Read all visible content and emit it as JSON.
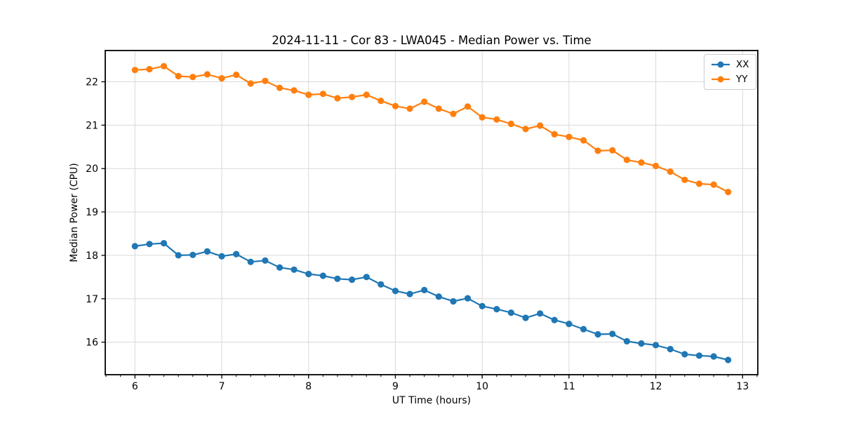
{
  "chart_data": {
    "type": "line",
    "title": "2024-11-11 - Cor 83 - LWA045 - Median Power vs. Time",
    "xlabel": "UT Time (hours)",
    "ylabel": "Median Power (CPU)",
    "x": [
      6.0,
      6.167,
      6.333,
      6.5,
      6.667,
      6.833,
      7.0,
      7.167,
      7.333,
      7.5,
      7.667,
      7.833,
      8.0,
      8.167,
      8.333,
      8.5,
      8.667,
      8.833,
      9.0,
      9.167,
      9.333,
      9.5,
      9.667,
      9.833,
      10.0,
      10.167,
      10.333,
      10.5,
      10.667,
      10.833,
      11.0,
      11.167,
      11.333,
      11.5,
      11.667,
      11.833,
      12.0,
      12.167,
      12.333,
      12.5,
      12.667,
      12.833
    ],
    "series": [
      {
        "name": "XX",
        "color": "#1f77b4",
        "values": [
          18.21,
          18.26,
          18.28,
          18.0,
          18.01,
          18.09,
          17.98,
          18.03,
          17.85,
          17.88,
          17.72,
          17.67,
          17.57,
          17.53,
          17.46,
          17.44,
          17.5,
          17.33,
          17.18,
          17.11,
          17.2,
          17.05,
          16.94,
          17.01,
          16.83,
          16.76,
          16.68,
          16.56,
          16.66,
          16.51,
          16.42,
          16.3,
          16.18,
          16.19,
          16.02,
          15.97,
          15.93,
          15.84,
          15.72,
          15.69,
          15.67,
          15.59
        ]
      },
      {
        "name": "YY",
        "color": "#ff7f0e",
        "values": [
          22.27,
          22.29,
          22.36,
          22.13,
          22.11,
          22.17,
          22.08,
          22.16,
          21.96,
          22.02,
          21.86,
          21.8,
          21.7,
          21.72,
          21.62,
          21.65,
          21.7,
          21.56,
          21.44,
          21.38,
          21.54,
          21.38,
          21.26,
          21.43,
          21.18,
          21.13,
          21.03,
          20.91,
          20.99,
          20.79,
          20.73,
          20.65,
          20.41,
          20.42,
          20.2,
          20.14,
          20.06,
          19.93,
          19.74,
          19.65,
          19.63,
          19.46
        ]
      }
    ],
    "xlim": [
      5.658,
      13.175
    ],
    "ylim": [
      15.25,
      22.72
    ],
    "xticks": [
      6,
      7,
      8,
      9,
      10,
      11,
      12,
      13
    ],
    "yticks": [
      16,
      17,
      18,
      19,
      20,
      21,
      22
    ],
    "minor_xtick_step": 0.166667,
    "grid": true,
    "legend_position": "upper right",
    "marker": "circle",
    "colors": {
      "grid": "#d9d9d9",
      "spine": "#000000",
      "background": "#ffffff"
    }
  }
}
